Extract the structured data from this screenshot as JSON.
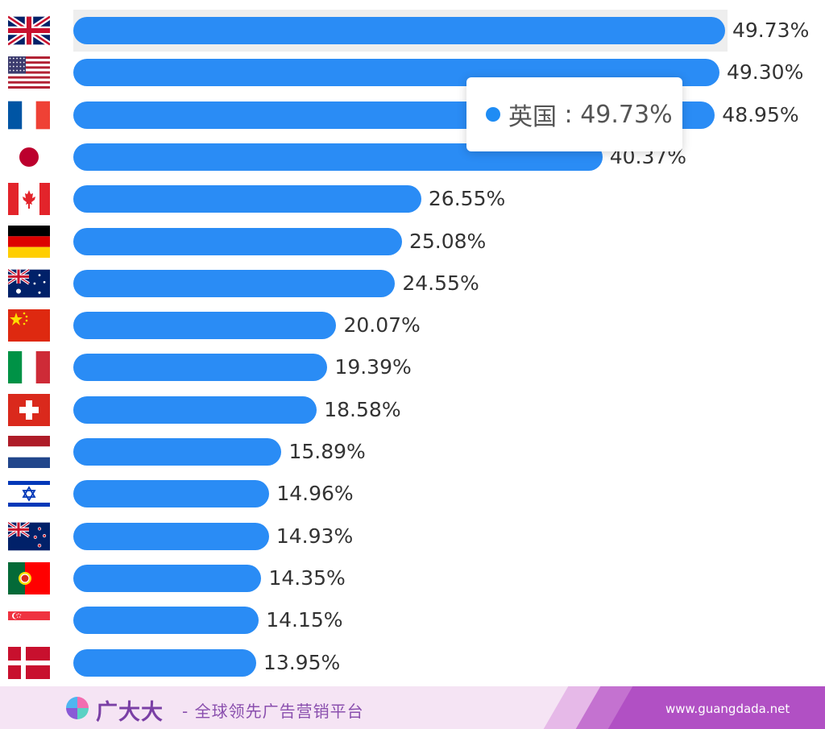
{
  "chart_data": {
    "type": "bar",
    "orientation": "horizontal",
    "categories": [
      "英国",
      "美国",
      "法国",
      "日本",
      "加拿大",
      "德国",
      "澳大利亚",
      "中国",
      "意大利",
      "瑞士",
      "荷兰",
      "以色列",
      "新西兰",
      "葡萄牙",
      "新加坡",
      "丹麦"
    ],
    "flags": [
      "flag-uk",
      "flag-us",
      "flag-france",
      "flag-japan",
      "flag-canada",
      "flag-germany",
      "flag-australia",
      "flag-china",
      "flag-italy",
      "flag-switzerland",
      "flag-netherlands",
      "flag-israel",
      "flag-new-zealand",
      "flag-portugal",
      "flag-singapore",
      "flag-denmark"
    ],
    "values": [
      49.73,
      49.3,
      48.95,
      40.37,
      26.55,
      25.08,
      24.55,
      20.07,
      19.39,
      18.58,
      15.89,
      14.96,
      14.93,
      14.35,
      14.15,
      13.95
    ],
    "labels": [
      "49.73%",
      "49.30%",
      "48.95%",
      "40.37%",
      "26.55%",
      "25.08%",
      "24.55%",
      "20.07%",
      "19.39%",
      "18.58%",
      "15.89%",
      "14.96%",
      "14.93%",
      "14.35%",
      "14.15%",
      "13.95%"
    ],
    "unit": "%",
    "bar_color": "#2a8cf5",
    "highlighted_category": "英国",
    "title": "",
    "xlabel": "",
    "ylabel": ""
  },
  "tooltip": {
    "category": "英国",
    "separator": " : ",
    "value": "49.73%",
    "color": "#1f8cf4"
  },
  "footer": {
    "brand": "广大大",
    "slogan": "- 全球领先广告营销平台",
    "website": "www.guangdada.net"
  }
}
